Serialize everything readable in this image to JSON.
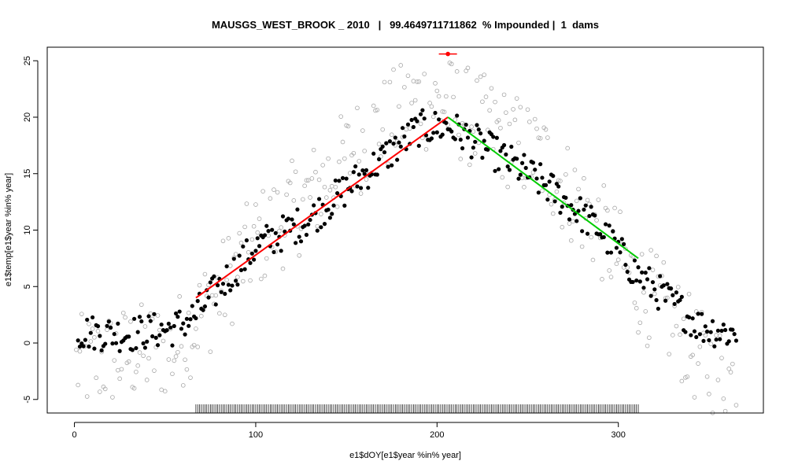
{
  "chart_data": {
    "type": "scatter",
    "title": "MAUSGS_WEST_BROOK _ 2010   |   99.4649711711862  % Impounded |  1  dams",
    "xlabel": "e1$dOY[e1$year %in% year]",
    "ylabel": "e1$temp[e1$year %in% year]",
    "xlim": [
      -15,
      380
    ],
    "ylim": [
      -6.2,
      26.2
    ],
    "x_ticks": [
      "0",
      "100",
      "200",
      "300"
    ],
    "y_ticks": [
      "-5",
      "0",
      "5",
      "10",
      "15",
      "20",
      "25"
    ],
    "grid": false,
    "legend": "none",
    "colors": {
      "water_temp": "#000000",
      "air_temp": "#a6a6a6",
      "rising_fit": "#ff0000",
      "falling_fit": "#00cc00",
      "breakpoint_marker": "#ff0000",
      "rug": "#000000"
    },
    "segments": [
      {
        "x": [
          67,
          206
        ],
        "y": [
          4.0,
          20.0
        ]
      },
      {
        "x": [
          206,
          311
        ],
        "y": [
          20.0,
          7.5
        ]
      }
    ],
    "breakpoint_marker": {
      "x": 206,
      "y": 25.6,
      "xerr": [
        201,
        211
      ]
    },
    "rug_range": [
      67,
      311
    ],
    "water_curve": {
      "x": [
        1,
        30,
        55,
        67,
        80,
        100,
        130,
        160,
        190,
        206,
        230,
        260,
        290,
        311,
        330,
        345,
        365
      ],
      "y": [
        1.0,
        0.8,
        1.3,
        2.5,
        5.0,
        8.5,
        11.0,
        15.0,
        19.0,
        19.2,
        17.0,
        14.0,
        10.0,
        6.0,
        3.5,
        1.5,
        0.8
      ]
    },
    "air_curve": {
      "x": [
        1,
        30,
        55,
        67,
        80,
        100,
        130,
        160,
        190,
        206,
        230,
        260,
        290,
        311,
        330,
        345,
        365
      ],
      "y": [
        -2.0,
        -1.0,
        -0.5,
        2.0,
        4.5,
        9.0,
        13.0,
        18.0,
        21.5,
        21.0,
        19.0,
        16.0,
        10.0,
        5.0,
        2.0,
        -1.5,
        -3.5
      ]
    }
  }
}
